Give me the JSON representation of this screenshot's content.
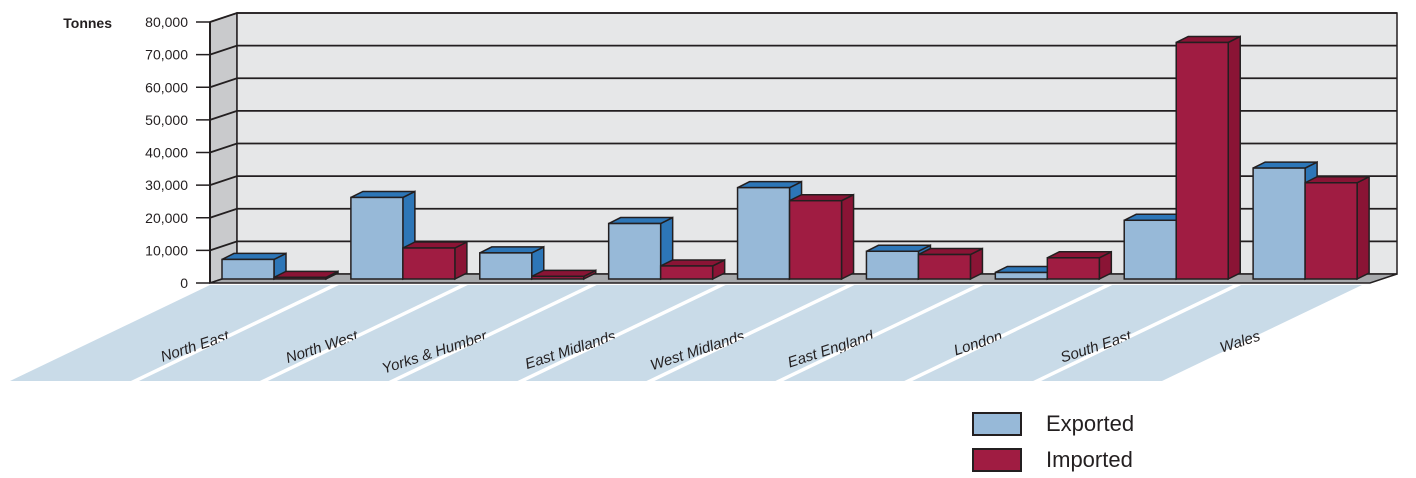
{
  "chart_data": {
    "type": "bar",
    "ylabel": "Tonnes",
    "ylim": [
      0,
      80000
    ],
    "yticks": [
      "0",
      "10,000",
      "20,000",
      "30,000",
      "40,000",
      "50,000",
      "60,000",
      "70,000",
      "80,000"
    ],
    "categories": [
      "North East",
      "North West",
      "Yorks & Humber",
      "East Midlands",
      "West Midlands",
      "East England",
      "London",
      "South East",
      "Wales"
    ],
    "series": [
      {
        "name": "Exported",
        "color": "#97b9d8",
        "side_color": "#2d76b7",
        "values": [
          6000,
          25000,
          8000,
          17000,
          28000,
          8500,
          2000,
          18000,
          34000
        ]
      },
      {
        "name": "Imported",
        "color": "#a01c42",
        "side_color": "#8a1435",
        "values": [
          500,
          9500,
          800,
          4000,
          24000,
          7500,
          6500,
          72500,
          29500
        ]
      }
    ],
    "legend_position": "bottom-right",
    "grid": true
  }
}
